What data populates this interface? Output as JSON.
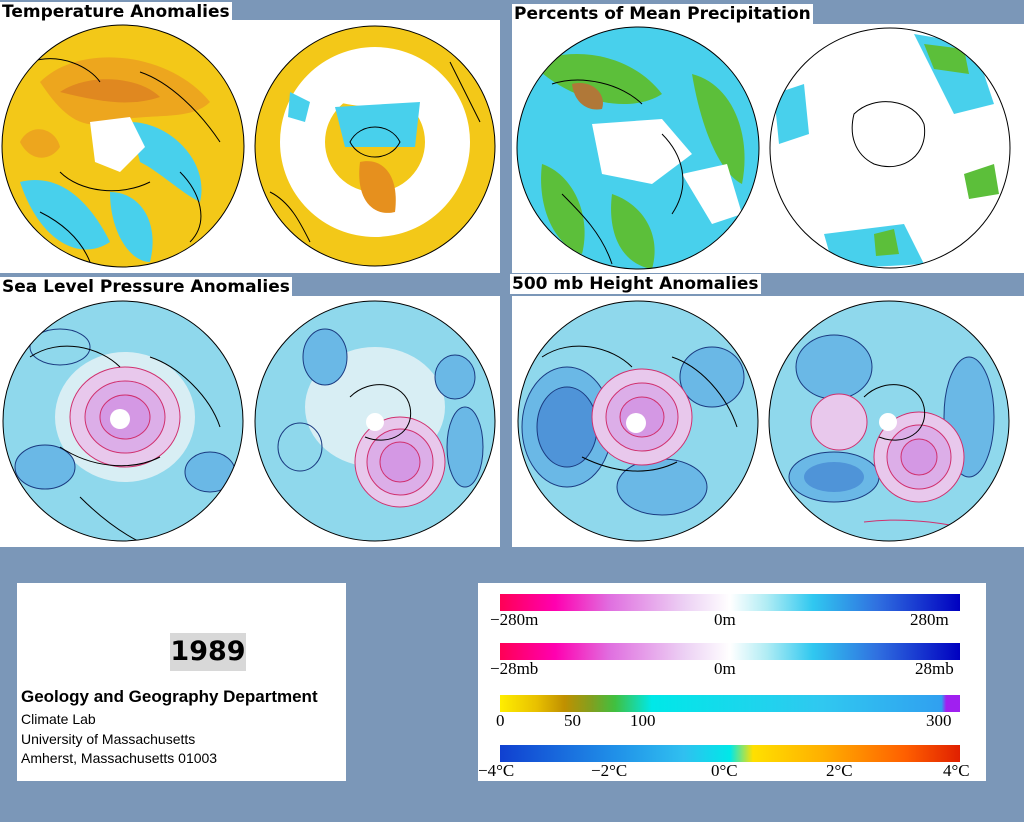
{
  "panels": {
    "temperature": {
      "title": "Temperature Anomalies"
    },
    "precipitation": {
      "title": "Percents of Mean Precipitation"
    },
    "slp": {
      "title": "Sea Level Pressure Anomalies"
    },
    "height500": {
      "title": "500 mb Height Anomalies"
    }
  },
  "info": {
    "year": "1989",
    "department": "Geology and Geography Department",
    "lab": "Climate Lab",
    "university": "University of Massachusetts",
    "address": "Amherst, Massachusetts 01003"
  },
  "legend": {
    "height": {
      "left": "−280m",
      "mid": "0m",
      "right": "280m"
    },
    "pressure": {
      "left": "−28mb",
      "mid": "0m",
      "right": "28mb"
    },
    "precip": {
      "t0": "0",
      "t50": "50",
      "t100": "100",
      "t300": "300"
    },
    "temp": {
      "t1": "−4°C",
      "t2": "−2°C",
      "t3": "0°C",
      "t4": "2°C",
      "t5": "4°C"
    }
  },
  "colors": {
    "background": "#7b97b8",
    "positive_anomaly": "#e0308a",
    "negative_anomaly": "#3050c0",
    "neutral": "#c8e8f0"
  }
}
